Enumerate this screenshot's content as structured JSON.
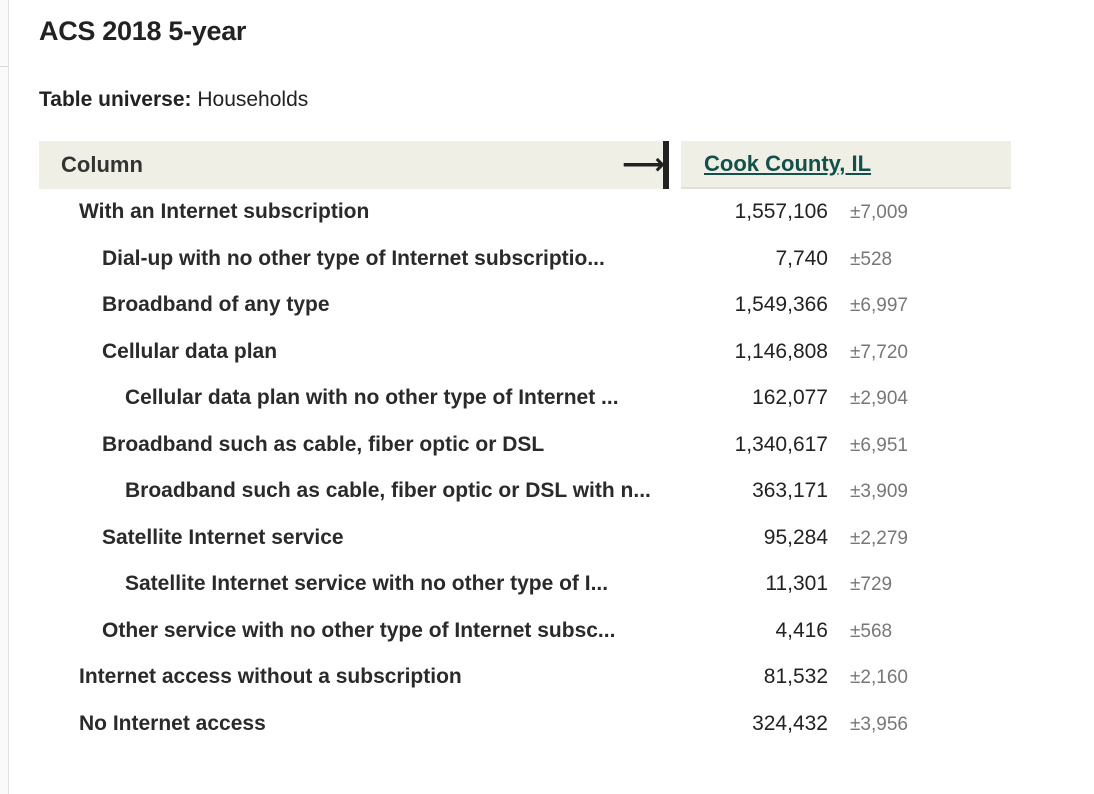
{
  "release": {
    "title": "ACS 2018 5-year"
  },
  "universe": {
    "label": "Table universe:",
    "value": "Households"
  },
  "table": {
    "column_header": "Column",
    "arrow_icon": "right-arrow-icon",
    "geography": "Cook County, IL",
    "rows": [
      {
        "label": "With an Internet subscription",
        "value": "1,557,106",
        "moe": "±7,009",
        "indent": 0
      },
      {
        "label": "Dial-up with no other type of Internet subscriptio...",
        "value": "7,740",
        "moe": "±528",
        "indent": 1
      },
      {
        "label": "Broadband of any type",
        "value": "1,549,366",
        "moe": "±6,997",
        "indent": 1
      },
      {
        "label": "Cellular data plan",
        "value": "1,146,808",
        "moe": "±7,720",
        "indent": 1
      },
      {
        "label": "Cellular data plan with no other type of Internet ...",
        "value": "162,077",
        "moe": "±2,904",
        "indent": 2
      },
      {
        "label": "Broadband such as cable, fiber optic or DSL",
        "value": "1,340,617",
        "moe": "±6,951",
        "indent": 1
      },
      {
        "label": "Broadband such as cable, fiber optic or DSL with n...",
        "value": "363,171",
        "moe": "±3,909",
        "indent": 2
      },
      {
        "label": "Satellite Internet service",
        "value": "95,284",
        "moe": "±2,279",
        "indent": 1
      },
      {
        "label": "Satellite Internet service with no other type of I...",
        "value": "11,301",
        "moe": "±729",
        "indent": 2
      },
      {
        "label": "Other service with no other type of Internet subsc...",
        "value": "4,416",
        "moe": "±568",
        "indent": 1
      },
      {
        "label": "Internet access without a subscription",
        "value": "81,532",
        "moe": "±2,160",
        "indent": 0
      },
      {
        "label": "No Internet access",
        "value": "324,432",
        "moe": "±3,956",
        "indent": 0
      }
    ]
  }
}
